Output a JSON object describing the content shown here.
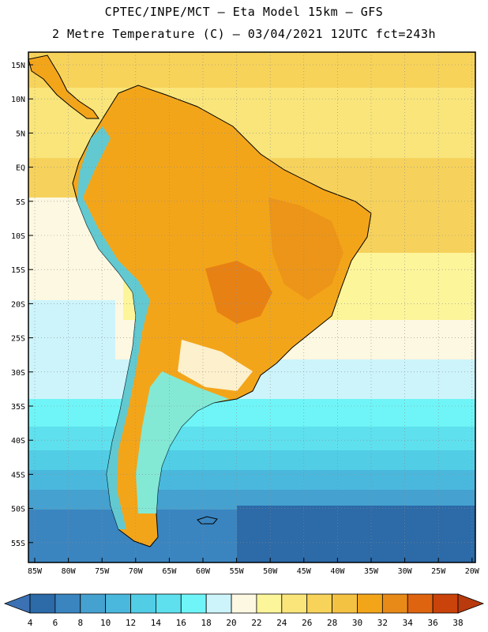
{
  "header": {
    "line1": "CPTEC/INPE/MCT –  Eta Model 15km – GFS",
    "line2": "2 Metre Temperature (C) – 03/04/2021 12UTC fct=243h"
  },
  "map": {
    "lat_labels": [
      "15N",
      "10N",
      "5N",
      "EQ",
      "5S",
      "10S",
      "15S",
      "20S",
      "25S",
      "30S",
      "35S",
      "40S",
      "45S",
      "50S",
      "55S"
    ],
    "lon_labels": [
      "85W",
      "80W",
      "75W",
      "70W",
      "65W",
      "60W",
      "55W",
      "50W",
      "45W",
      "40W",
      "35W",
      "30W",
      "25W",
      "20W"
    ]
  },
  "legend": {
    "values": [
      "4",
      "6",
      "8",
      "10",
      "12",
      "14",
      "16",
      "18",
      "20",
      "22",
      "24",
      "26",
      "28",
      "30",
      "32",
      "34",
      "36",
      "38"
    ],
    "colors": [
      "#2c6aa8",
      "#3a85c0",
      "#45a1d0",
      "#4ab8dd",
      "#52cde6",
      "#5ee0ee",
      "#6ff5f7",
      "#cdf4fb",
      "#fdf8e1",
      "#fdf59a",
      "#f9e57a",
      "#f7d35a",
      "#f4c243",
      "#f3a51a",
      "#e88a18",
      "#df6410",
      "#c9430a"
    ],
    "low_color": "#3c72b4",
    "high_color": "#b83a0d"
  }
}
